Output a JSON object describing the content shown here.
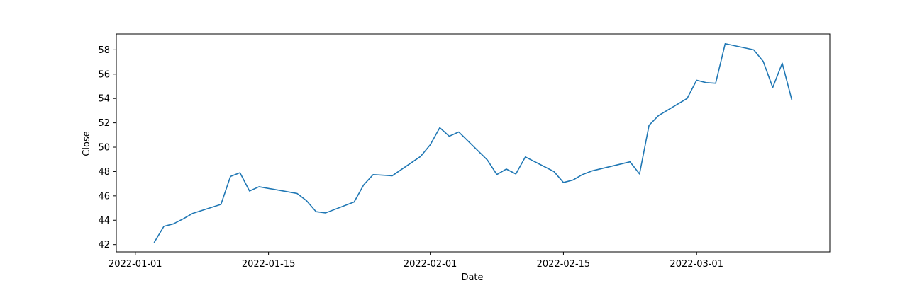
{
  "chart_data": {
    "type": "line",
    "title": "",
    "xlabel": "Date",
    "ylabel": "Close",
    "grid": false,
    "xlim": [
      "2021-12-30",
      "2022-03-15"
    ],
    "ylim": [
      41.4,
      59.3
    ],
    "xticks": [
      "2022-01-01",
      "2022-01-15",
      "2022-02-01",
      "2022-02-15",
      "2022-03-01"
    ],
    "yticks": [
      42,
      44,
      46,
      48,
      50,
      52,
      54,
      56,
      58
    ],
    "series": [
      {
        "name": "",
        "color": "#1f77b4",
        "x": [
          "2022-01-03",
          "2022-01-04",
          "2022-01-05",
          "2022-01-06",
          "2022-01-07",
          "2022-01-10",
          "2022-01-11",
          "2022-01-12",
          "2022-01-13",
          "2022-01-14",
          "2022-01-18",
          "2022-01-19",
          "2022-01-20",
          "2022-01-21",
          "2022-01-24",
          "2022-01-25",
          "2022-01-26",
          "2022-01-28",
          "2022-01-31",
          "2022-02-01",
          "2022-02-02",
          "2022-02-03",
          "2022-02-04",
          "2022-02-07",
          "2022-02-08",
          "2022-02-09",
          "2022-02-10",
          "2022-02-11",
          "2022-02-14",
          "2022-02-15",
          "2022-02-16",
          "2022-02-17",
          "2022-02-18",
          "2022-02-22",
          "2022-02-23",
          "2022-02-24",
          "2022-02-25",
          "2022-02-28",
          "2022-03-01",
          "2022-03-02",
          "2022-03-03",
          "2022-03-04",
          "2022-03-07",
          "2022-03-08",
          "2022-03-09",
          "2022-03-10",
          "2022-03-11"
        ],
        "y": [
          42.2,
          43.5,
          43.7,
          44.1,
          44.55,
          45.3,
          47.6,
          47.9,
          46.4,
          46.75,
          46.2,
          45.6,
          44.7,
          44.6,
          45.5,
          46.9,
          47.75,
          47.65,
          49.25,
          50.2,
          51.6,
          50.9,
          51.25,
          48.95,
          47.75,
          48.2,
          47.8,
          49.2,
          48.0,
          47.1,
          47.3,
          47.75,
          48.05,
          48.8,
          47.8,
          51.8,
          52.6,
          54.0,
          55.5,
          55.3,
          55.25,
          58.5,
          58.0,
          57.05,
          54.9,
          56.9,
          53.9
        ]
      }
    ]
  }
}
